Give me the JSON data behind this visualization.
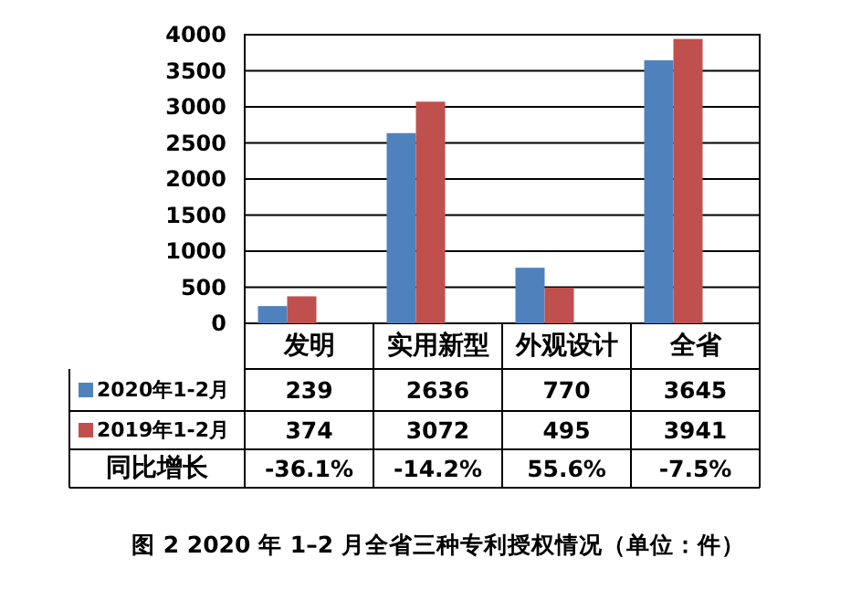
{
  "chart_data": {
    "type": "bar",
    "title": "图 2 2020 年 1–2 月全省三种专利授权情况（单位：件）",
    "categories": [
      "发明",
      "实用新型",
      "外观设计",
      "全省"
    ],
    "series": [
      {
        "name": "2020年1-2月",
        "color": "#4f81bd",
        "values": [
          239,
          2636,
          770,
          3645
        ]
      },
      {
        "name": "2019年1-2月",
        "color": "#c0504d",
        "values": [
          374,
          3072,
          495,
          3941
        ]
      }
    ],
    "ylim": [
      0,
      4000
    ],
    "yticks": [
      0,
      500,
      1000,
      1500,
      2000,
      2500,
      3000,
      3500,
      4000
    ],
    "grid": "y",
    "legend": "bottom",
    "data_labels": true,
    "annotations": [
      "同比增长",
      "-36.1%",
      "-14.2%",
      "55.6%",
      "-7.5%"
    ]
  }
}
